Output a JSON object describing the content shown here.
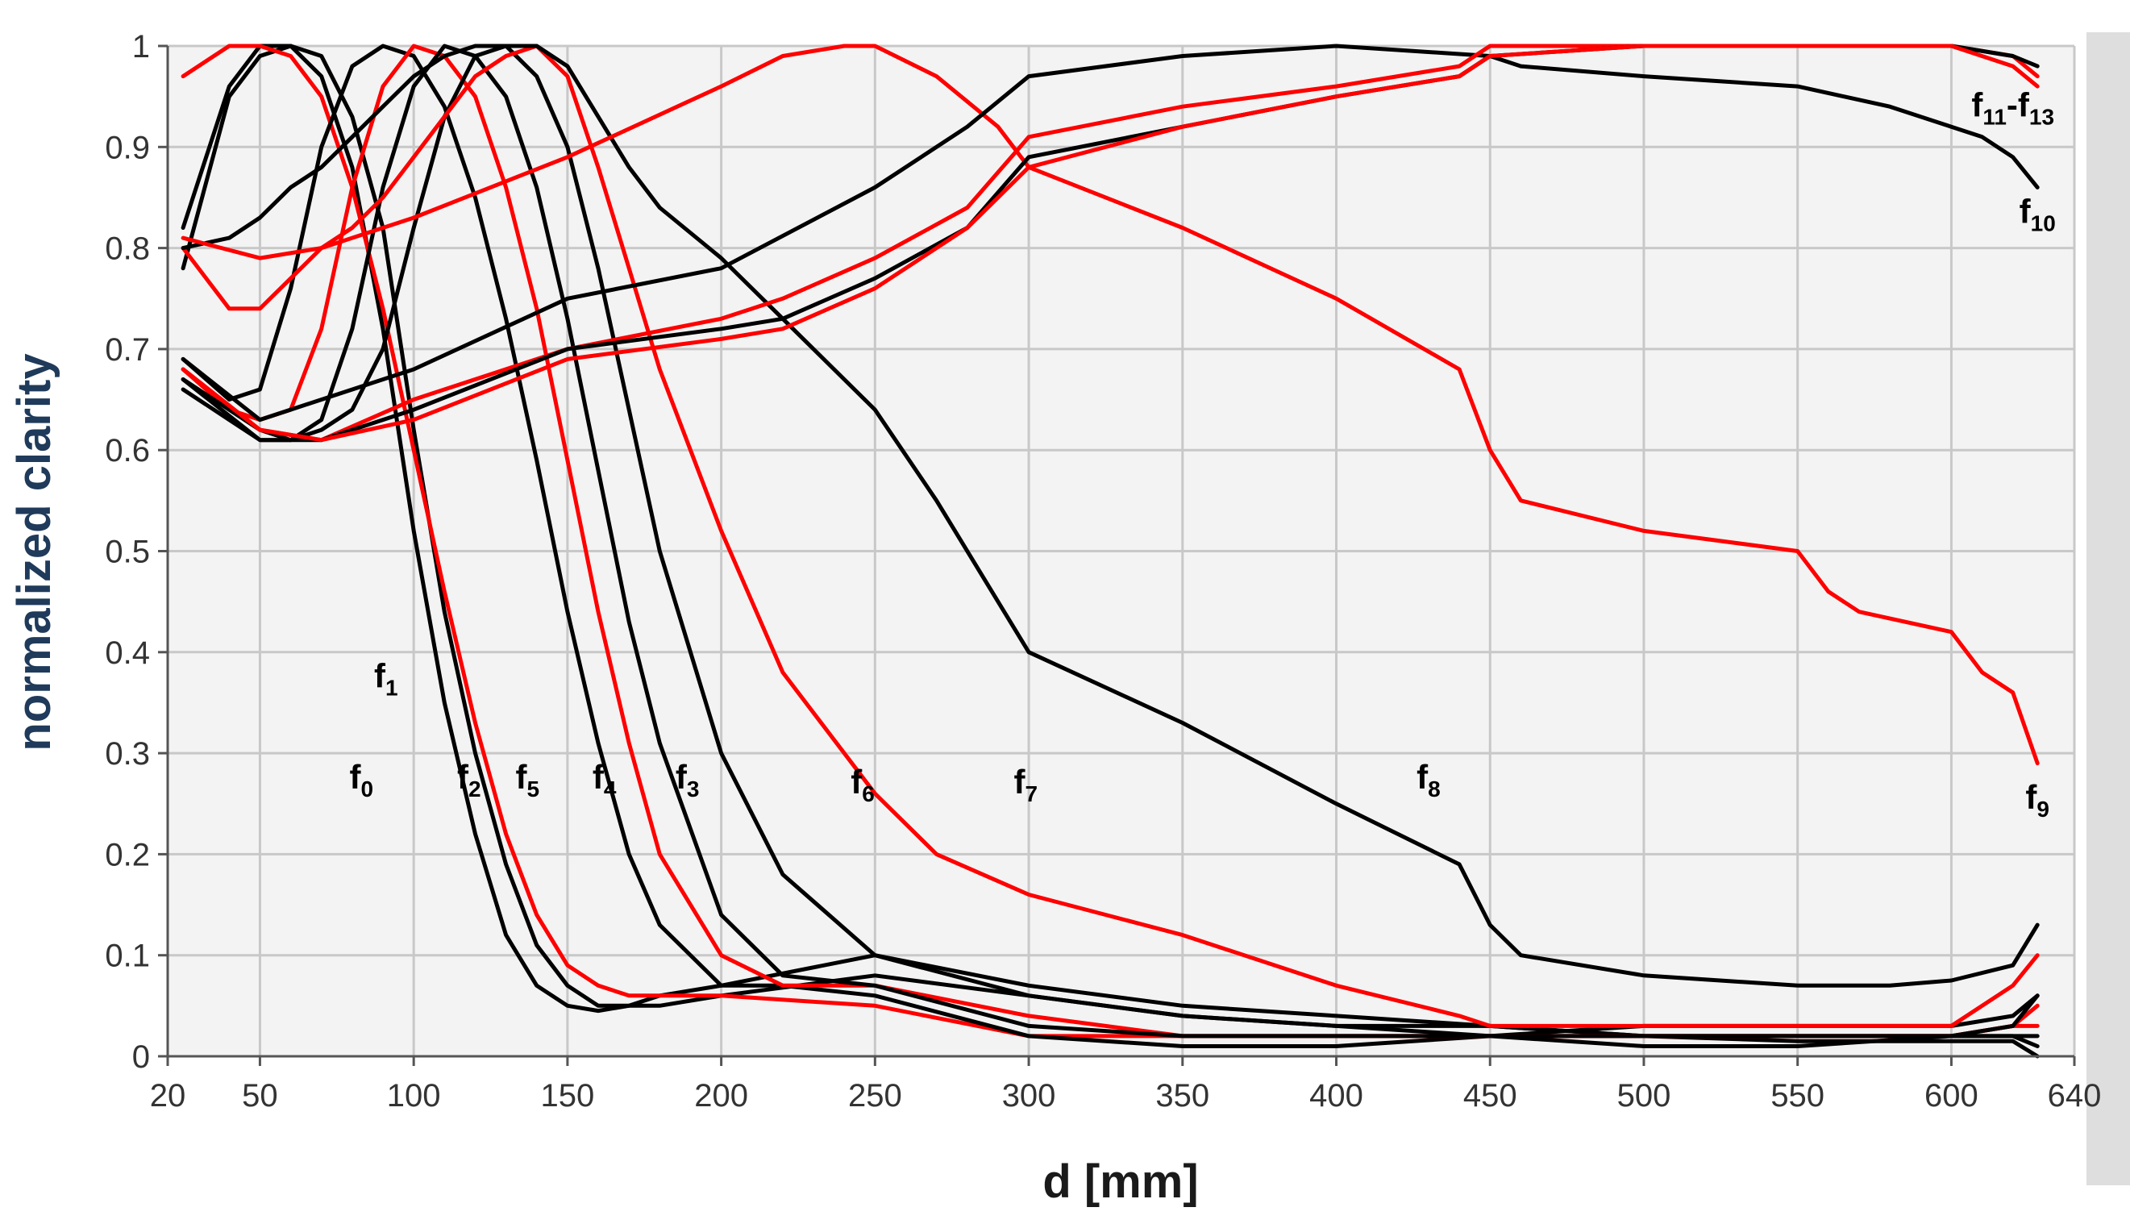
{
  "chart_data": {
    "type": "line",
    "title": "",
    "xlabel": "d [mm]",
    "ylabel": "normalized clarity",
    "xlim": [
      20,
      640
    ],
    "ylim": [
      0,
      1
    ],
    "grid": true,
    "x_ticks": [
      "20",
      "50",
      "100",
      "150",
      "200",
      "250",
      "300",
      "350",
      "400",
      "450",
      "500",
      "550",
      "600",
      "640"
    ],
    "y_ticks": [
      "0",
      "0.1",
      "0.2",
      "0.3",
      "0.4",
      "0.5",
      "0.6",
      "0.7",
      "0.8",
      "0.9",
      "1"
    ],
    "series": [
      {
        "name": "f0",
        "color": "#000000",
        "x": [
          25,
          40,
          50,
          60,
          70,
          80,
          90,
          100,
          110,
          120,
          130,
          140,
          150,
          160,
          170,
          180,
          200,
          250,
          300,
          350,
          400,
          450,
          500,
          550,
          600,
          620,
          628
        ],
        "y": [
          0.78,
          0.95,
          0.99,
          1,
          0.97,
          0.88,
          0.72,
          0.52,
          0.35,
          0.22,
          0.12,
          0.07,
          0.05,
          0.045,
          0.05,
          0.06,
          0.07,
          0.1,
          0.07,
          0.05,
          0.04,
          0.03,
          0.02,
          0.015,
          0.015,
          0.015,
          0.0
        ]
      },
      {
        "name": "f1",
        "color": "#000000",
        "x": [
          25,
          40,
          50,
          60,
          70,
          80,
          90,
          100,
          110,
          120,
          130,
          140,
          150,
          160,
          170,
          180,
          200,
          250,
          300,
          350,
          400,
          450,
          500,
          550,
          600,
          620,
          628
        ],
        "y": [
          0.82,
          0.96,
          1,
          1,
          0.99,
          0.93,
          0.82,
          0.62,
          0.44,
          0.3,
          0.19,
          0.11,
          0.07,
          0.05,
          0.05,
          0.05,
          0.06,
          0.08,
          0.06,
          0.04,
          0.03,
          0.03,
          0.02,
          0.02,
          0.02,
          0.02,
          0.01
        ]
      },
      {
        "name": "f2",
        "color": "#ff0000",
        "x": [
          25,
          40,
          50,
          60,
          70,
          80,
          90,
          100,
          110,
          120,
          130,
          140,
          150,
          160,
          170,
          180,
          200,
          250,
          300,
          350,
          400,
          450,
          500,
          550,
          600,
          620,
          628
        ],
        "y": [
          0.97,
          1,
          1,
          0.99,
          0.95,
          0.86,
          0.74,
          0.6,
          0.46,
          0.33,
          0.22,
          0.14,
          0.09,
          0.07,
          0.06,
          0.06,
          0.06,
          0.05,
          0.02,
          0.02,
          0.02,
          0.02,
          0.02,
          0.02,
          0.02,
          0.03,
          0.03
        ]
      },
      {
        "name": "f3",
        "color": "#000000",
        "x": [
          25,
          40,
          50,
          60,
          70,
          80,
          90,
          100,
          110,
          120,
          130,
          140,
          150,
          160,
          170,
          180,
          200,
          220,
          250,
          300,
          350,
          400,
          450,
          500,
          550,
          600,
          620,
          628
        ],
        "y": [
          0.69,
          0.65,
          0.66,
          0.76,
          0.9,
          0.98,
          1,
          0.99,
          0.94,
          0.85,
          0.73,
          0.59,
          0.44,
          0.31,
          0.2,
          0.13,
          0.07,
          0.07,
          0.06,
          0.02,
          0.01,
          0.01,
          0.02,
          0.03,
          0.03,
          0.03,
          0.04,
          0.06
        ]
      },
      {
        "name": "f4",
        "color": "#ff0000",
        "x": [
          25,
          40,
          50,
          60,
          70,
          80,
          90,
          100,
          110,
          120,
          130,
          140,
          150,
          160,
          170,
          180,
          200,
          220,
          250,
          300,
          350,
          400,
          450,
          500,
          550,
          600,
          620,
          628
        ],
        "y": [
          0.68,
          0.64,
          0.63,
          0.64,
          0.72,
          0.86,
          0.96,
          1,
          0.99,
          0.95,
          0.86,
          0.74,
          0.59,
          0.44,
          0.31,
          0.2,
          0.1,
          0.07,
          0.07,
          0.04,
          0.02,
          0.02,
          0.02,
          0.02,
          0.02,
          0.02,
          0.03,
          0.05
        ]
      },
      {
        "name": "f5",
        "color": "#000000",
        "x": [
          25,
          40,
          50,
          60,
          70,
          80,
          90,
          100,
          110,
          120,
          130,
          140,
          150,
          160,
          170,
          180,
          200,
          220,
          250,
          300,
          350,
          400,
          450,
          500,
          550,
          600,
          620,
          628
        ],
        "y": [
          0.66,
          0.63,
          0.61,
          0.61,
          0.63,
          0.72,
          0.86,
          0.96,
          1,
          0.99,
          0.95,
          0.86,
          0.73,
          0.58,
          0.43,
          0.31,
          0.14,
          0.08,
          0.07,
          0.03,
          0.02,
          0.02,
          0.02,
          0.02,
          0.02,
          0.02,
          0.03,
          0.06
        ]
      },
      {
        "name": "f6",
        "color": "#000000",
        "x": [
          25,
          40,
          50,
          60,
          70,
          80,
          90,
          100,
          110,
          120,
          130,
          140,
          150,
          160,
          170,
          180,
          200,
          220,
          250,
          300,
          350,
          400,
          450,
          500,
          550,
          600,
          620,
          628
        ],
        "y": [
          0.67,
          0.64,
          0.62,
          0.61,
          0.62,
          0.64,
          0.7,
          0.82,
          0.93,
          0.99,
          1,
          0.97,
          0.9,
          0.78,
          0.64,
          0.5,
          0.3,
          0.18,
          0.1,
          0.06,
          0.04,
          0.03,
          0.02,
          0.01,
          0.01,
          0.02,
          0.02,
          0.02
        ]
      },
      {
        "name": "f7",
        "color": "#ff0000",
        "x": [
          25,
          40,
          50,
          60,
          70,
          80,
          90,
          100,
          110,
          120,
          130,
          140,
          150,
          160,
          170,
          180,
          200,
          220,
          250,
          270,
          300,
          350,
          400,
          440,
          450,
          500,
          550,
          600,
          620,
          628
        ],
        "y": [
          0.8,
          0.74,
          0.74,
          0.77,
          0.8,
          0.82,
          0.85,
          0.89,
          0.93,
          0.97,
          0.99,
          1,
          0.97,
          0.88,
          0.78,
          0.68,
          0.52,
          0.38,
          0.26,
          0.2,
          0.16,
          0.12,
          0.07,
          0.04,
          0.03,
          0.03,
          0.03,
          0.03,
          0.07,
          0.1
        ]
      },
      {
        "name": "f8",
        "color": "#000000",
        "x": [
          25,
          40,
          50,
          60,
          70,
          80,
          90,
          100,
          110,
          120,
          130,
          140,
          150,
          160,
          170,
          180,
          200,
          220,
          250,
          270,
          300,
          350,
          400,
          440,
          450,
          460,
          500,
          550,
          580,
          600,
          620,
          628
        ],
        "y": [
          0.8,
          0.81,
          0.83,
          0.86,
          0.88,
          0.91,
          0.94,
          0.97,
          0.99,
          1,
          1,
          1,
          0.98,
          0.93,
          0.88,
          0.84,
          0.79,
          0.73,
          0.64,
          0.55,
          0.4,
          0.33,
          0.25,
          0.19,
          0.13,
          0.1,
          0.08,
          0.07,
          0.07,
          0.075,
          0.09,
          0.13
        ]
      },
      {
        "name": "f9",
        "color": "#ff0000",
        "x": [
          25,
          50,
          70,
          100,
          150,
          200,
          220,
          240,
          250,
          270,
          290,
          300,
          350,
          400,
          440,
          450,
          460,
          500,
          550,
          560,
          570,
          600,
          610,
          620,
          628
        ],
        "y": [
          0.81,
          0.79,
          0.8,
          0.83,
          0.89,
          0.96,
          0.99,
          1,
          1,
          0.97,
          0.92,
          0.88,
          0.82,
          0.75,
          0.68,
          0.6,
          0.55,
          0.52,
          0.5,
          0.46,
          0.44,
          0.42,
          0.38,
          0.36,
          0.29
        ]
      },
      {
        "name": "f10",
        "color": "#000000",
        "x": [
          25,
          50,
          100,
          150,
          200,
          250,
          280,
          300,
          350,
          400,
          450,
          460,
          500,
          550,
          580,
          600,
          610,
          620,
          628
        ],
        "y": [
          0.69,
          0.63,
          0.68,
          0.75,
          0.78,
          0.86,
          0.92,
          0.97,
          0.99,
          1,
          0.99,
          0.98,
          0.97,
          0.96,
          0.94,
          0.92,
          0.91,
          0.89,
          0.86
        ]
      },
      {
        "name": "f11",
        "color": "#ff0000",
        "x": [
          25,
          50,
          70,
          100,
          150,
          200,
          220,
          250,
          280,
          300,
          350,
          400,
          440,
          450,
          500,
          550,
          600,
          620,
          628
        ],
        "y": [
          0.68,
          0.62,
          0.61,
          0.65,
          0.7,
          0.73,
          0.75,
          0.79,
          0.84,
          0.91,
          0.94,
          0.96,
          0.98,
          1,
          1,
          1,
          1,
          0.99,
          0.97
        ]
      },
      {
        "name": "f12",
        "color": "#000000",
        "x": [
          25,
          50,
          70,
          100,
          150,
          200,
          220,
          250,
          280,
          300,
          350,
          400,
          440,
          450,
          500,
          550,
          600,
          620,
          628
        ],
        "y": [
          0.67,
          0.61,
          0.61,
          0.64,
          0.7,
          0.72,
          0.73,
          0.77,
          0.82,
          0.89,
          0.92,
          0.95,
          0.97,
          0.99,
          1,
          1,
          1,
          0.99,
          0.98
        ]
      },
      {
        "name": "f13",
        "color": "#ff0000",
        "x": [
          25,
          50,
          70,
          100,
          150,
          200,
          220,
          250,
          280,
          300,
          350,
          400,
          440,
          450,
          500,
          550,
          600,
          620,
          628
        ],
        "y": [
          0.68,
          0.62,
          0.61,
          0.63,
          0.69,
          0.71,
          0.72,
          0.76,
          0.82,
          0.88,
          0.92,
          0.95,
          0.97,
          0.99,
          1,
          1,
          1,
          0.98,
          0.96
        ]
      }
    ],
    "annotations": [
      {
        "base": "f",
        "sub": "0",
        "x": 83,
        "y": 0.265
      },
      {
        "base": "f",
        "sub": "1",
        "x": 91,
        "y": 0.365
      },
      {
        "base": "f",
        "sub": "2",
        "x": 118,
        "y": 0.265
      },
      {
        "base": "f",
        "sub": "5",
        "x": 137,
        "y": 0.265
      },
      {
        "base": "f",
        "sub": "4",
        "x": 162,
        "y": 0.265
      },
      {
        "base": "f",
        "sub": "3",
        "x": 189,
        "y": 0.265
      },
      {
        "base": "f",
        "sub": "6",
        "x": 246,
        "y": 0.26
      },
      {
        "base": "f",
        "sub": "7",
        "x": 299,
        "y": 0.26
      },
      {
        "base": "f",
        "sub": "8",
        "x": 430,
        "y": 0.265
      },
      {
        "base": "f",
        "sub": "9",
        "x": 628,
        "y": 0.245
      },
      {
        "base": "f",
        "sub": "10",
        "x": 628,
        "y": 0.825
      },
      {
        "base": "f",
        "sub": "11",
        "sep": "-",
        "base2": "f",
        "sub2": "13",
        "x": 620,
        "y": 0.93
      }
    ]
  }
}
